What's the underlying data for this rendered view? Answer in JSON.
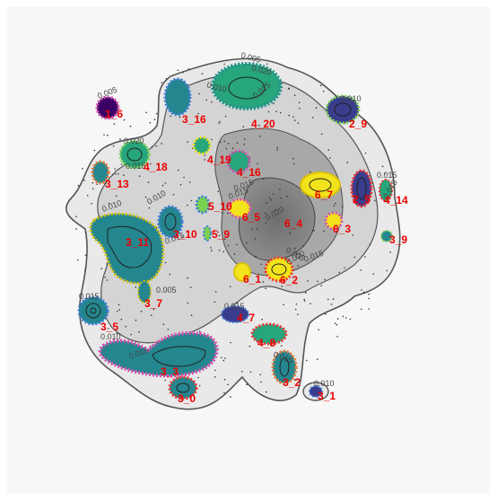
{
  "chart_data": {
    "type": "contour",
    "title": "",
    "xlabel": "",
    "ylabel": "",
    "axes_visible": false,
    "grid": false,
    "background": "#f7f7f7",
    "density_levels": [
      "0.005",
      "0.010",
      "0.015",
      "0.020"
    ],
    "contour_level_labels": [
      {
        "text": "0.005",
        "near_cluster": "1_6"
      },
      {
        "text": "0.005",
        "near_cluster": "4_20"
      },
      {
        "text": "0.010",
        "near_cluster": "3_16"
      },
      {
        "text": "0.015",
        "near_cluster": "4_20"
      },
      {
        "text": "0.020",
        "near_cluster": "4_20"
      },
      {
        "text": "0.010",
        "near_cluster": "2_9"
      },
      {
        "text": "0.020",
        "near_cluster": "4_18"
      },
      {
        "text": "0.015",
        "near_cluster": "4_18"
      },
      {
        "text": "0.015",
        "near_cluster": "4_16"
      },
      {
        "text": "0.015",
        "near_cluster": "2_5"
      },
      {
        "text": "0.015",
        "near_cluster": "4_14"
      },
      {
        "text": "0.010",
        "near_cluster": "3_13"
      },
      {
        "text": "0.010",
        "near_cluster": "5_10"
      },
      {
        "text": "0.015",
        "near_cluster": "6_5"
      },
      {
        "text": "0.020",
        "near_cluster": "6_4"
      },
      {
        "text": "0.015",
        "near_cluster": "3_10"
      },
      {
        "text": "0.005",
        "near_cluster": "6_2"
      },
      {
        "text": "0.020",
        "near_cluster": "6_2"
      },
      {
        "text": "0.015",
        "near_cluster": "6_2"
      },
      {
        "text": "0.005",
        "near_cluster": "3_7"
      },
      {
        "text": "0.015",
        "near_cluster": "3_5"
      },
      {
        "text": "0.010",
        "near_cluster": "3_5"
      },
      {
        "text": "0.015",
        "near_cluster": "4_7"
      },
      {
        "text": "0.015",
        "near_cluster": "3_3"
      },
      {
        "text": "0.015",
        "near_cluster": "3_2"
      },
      {
        "text": "0.010",
        "near_cluster": "3_1"
      }
    ],
    "clusters": [
      {
        "label": "1_6",
        "color": "#3b0066"
      },
      {
        "label": "3_16",
        "color": "#24868e"
      },
      {
        "label": "4_20",
        "color": "#27a57c"
      },
      {
        "label": "2_9",
        "color": "#3a3c8c"
      },
      {
        "label": "4_18",
        "color": "#27a57c"
      },
      {
        "label": "4_19",
        "color": "#27a57c"
      },
      {
        "label": "4_16",
        "color": "#27a57c"
      },
      {
        "label": "3_13",
        "color": "#24868e"
      },
      {
        "label": "6_7",
        "color": "#f3e31b"
      },
      {
        "label": "2_5",
        "color": "#3a3c8c"
      },
      {
        "label": "4_14",
        "color": "#27a57c"
      },
      {
        "label": "5_10",
        "color": "#7ad151"
      },
      {
        "label": "6_5",
        "color": "#f3e31b"
      },
      {
        "label": "6_4",
        "color": "#f3e31b"
      },
      {
        "label": "6_3",
        "color": "#f3e31b"
      },
      {
        "label": "3_10",
        "color": "#24868e"
      },
      {
        "label": "5_9",
        "color": "#7ad151"
      },
      {
        "label": "3_9",
        "color": "#24868e"
      },
      {
        "label": "3_11",
        "color": "#24868e"
      },
      {
        "label": "6_1",
        "color": "#f3e31b"
      },
      {
        "label": "6_2",
        "color": "#f3e31b"
      },
      {
        "label": "3_7",
        "color": "#24868e"
      },
      {
        "label": "3_5",
        "color": "#24868e"
      },
      {
        "label": "4_7",
        "color": "#27a57c"
      },
      {
        "label": "4_8",
        "color": "#27a57c"
      },
      {
        "label": "3_3",
        "color": "#24868e"
      },
      {
        "label": "3_2",
        "color": "#24868e"
      },
      {
        "label": "3_0",
        "color": "#24868e"
      },
      {
        "label": "3_1",
        "color": "#24868e"
      }
    ],
    "label_color": "#ee0000"
  }
}
